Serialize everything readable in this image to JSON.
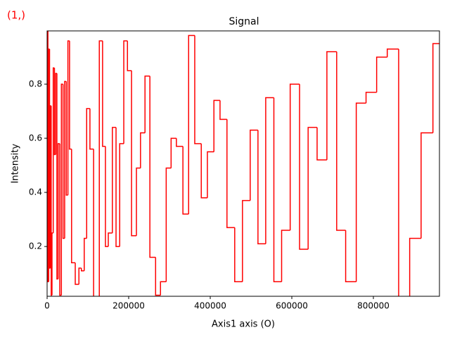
{
  "corner_label": "(1,)",
  "chart_data": {
    "type": "step",
    "title": "Signal",
    "x_label": "Axis1 axis (O)",
    "y_label": "Intensity",
    "color": "#ff0000",
    "x": [
      0,
      2000,
      4000,
      6000,
      8000,
      10000,
      12000,
      15000,
      18000,
      21000,
      24000,
      27000,
      31000,
      35000,
      39000,
      43000,
      47000,
      51000,
      55000,
      60000,
      69000,
      78000,
      84000,
      91000,
      97000,
      105000,
      114000,
      128000,
      136000,
      143000,
      150000,
      160000,
      169000,
      178000,
      188000,
      197000,
      207000,
      219000,
      229000,
      240000,
      252000,
      266000,
      278000,
      292000,
      304000,
      317000,
      333000,
      347000,
      362000,
      378000,
      393000,
      409000,
      424000,
      441000,
      460000,
      479000,
      498000,
      517000,
      536000,
      556000,
      575000,
      596000,
      619000,
      640000,
      662000,
      686000,
      710000,
      732000,
      758000,
      782000,
      808000,
      834000,
      862000,
      889000,
      917000,
      946000
    ],
    "values": [
      1.0,
      0.07,
      0.93,
      0.12,
      0.72,
      0.02,
      0.25,
      0.86,
      0.54,
      0.84,
      0.08,
      0.58,
      0.02,
      0.8,
      0.23,
      0.81,
      0.39,
      0.96,
      0.56,
      0.14,
      0.06,
      0.12,
      0.11,
      0.23,
      0.71,
      0.56,
      0.01,
      0.96,
      0.57,
      0.2,
      0.25,
      0.64,
      0.2,
      0.58,
      0.96,
      0.85,
      0.24,
      0.49,
      0.62,
      0.83,
      0.16,
      0.02,
      0.07,
      0.49,
      0.6,
      0.57,
      0.32,
      0.98,
      0.58,
      0.38,
      0.55,
      0.74,
      0.67,
      0.27,
      0.07,
      0.37,
      0.63,
      0.21,
      0.75,
      0.07,
      0.26,
      0.8,
      0.19,
      0.64,
      0.52,
      0.92,
      0.26,
      0.07,
      0.73,
      0.77,
      0.9,
      0.93,
      0.01,
      0.23,
      0.62,
      0.95
    ],
    "xlim": [
      0,
      962000
    ],
    "ylim": [
      0.016,
      0.997
    ],
    "xticks": [
      0,
      200000,
      400000,
      600000,
      800000
    ],
    "yticks": [
      0.2,
      0.4,
      0.6,
      0.8
    ]
  }
}
